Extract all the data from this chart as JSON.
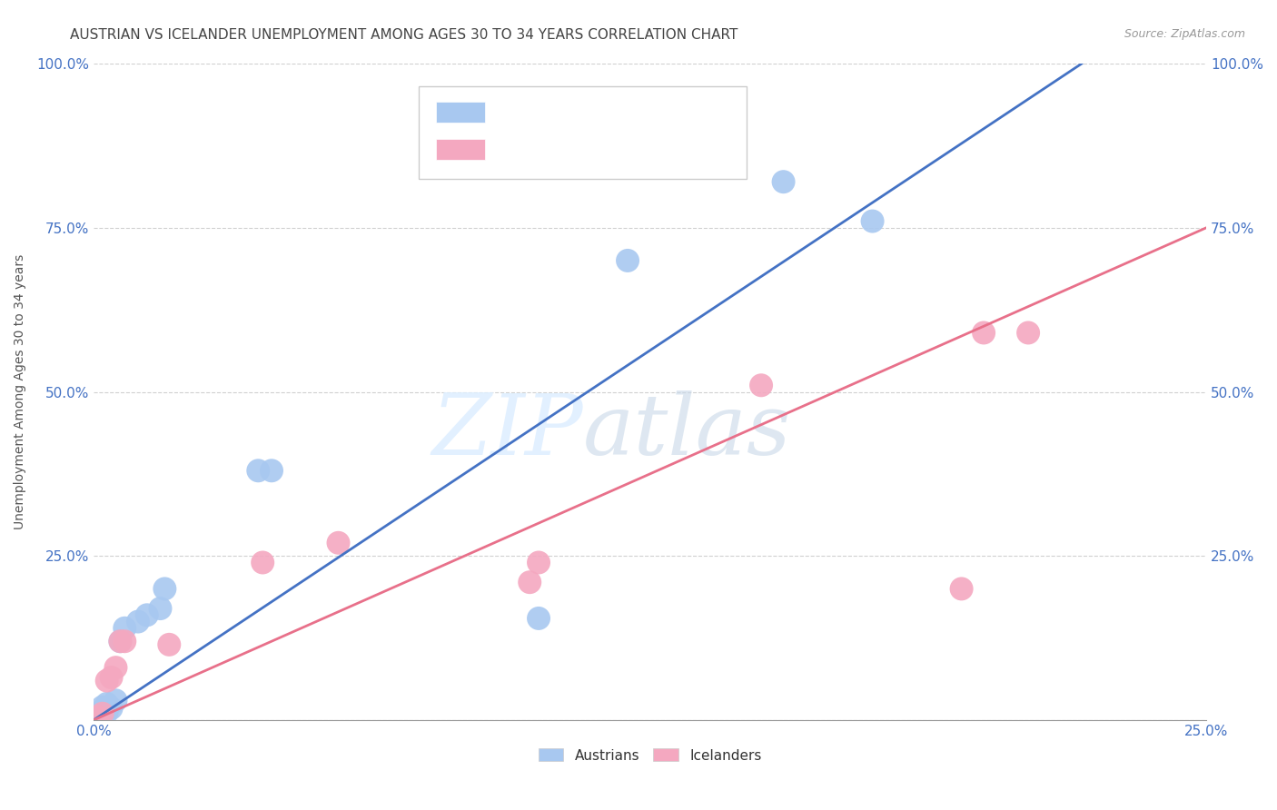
{
  "title": "AUSTRIAN VS ICELANDER UNEMPLOYMENT AMONG AGES 30 TO 34 YEARS CORRELATION CHART",
  "source": "Source: ZipAtlas.com",
  "ylabel_label": "Unemployment Among Ages 30 to 34 years",
  "xlim": [
    0.0,
    0.25
  ],
  "ylim": [
    0.0,
    1.0
  ],
  "xticks": [
    0.0,
    0.05,
    0.1,
    0.15,
    0.2,
    0.25
  ],
  "yticks": [
    0.0,
    0.25,
    0.5,
    0.75,
    1.0
  ],
  "xtick_labels": [
    "0.0%",
    "",
    "",
    "",
    "",
    "25.0%"
  ],
  "ytick_labels": [
    "",
    "25.0%",
    "50.0%",
    "75.0%",
    "100.0%"
  ],
  "austrians_x": [
    0.001,
    0.001,
    0.002,
    0.002,
    0.003,
    0.003,
    0.004,
    0.005,
    0.006,
    0.007,
    0.01,
    0.012,
    0.015,
    0.016,
    0.037,
    0.04,
    0.1,
    0.12,
    0.155,
    0.175
  ],
  "austrians_y": [
    0.005,
    0.01,
    0.015,
    0.02,
    0.012,
    0.025,
    0.018,
    0.03,
    0.12,
    0.14,
    0.15,
    0.16,
    0.17,
    0.2,
    0.38,
    0.38,
    0.155,
    0.7,
    0.82,
    0.76
  ],
  "icelanders_x": [
    0.001,
    0.002,
    0.003,
    0.004,
    0.005,
    0.006,
    0.007,
    0.017,
    0.038,
    0.055,
    0.098,
    0.1,
    0.15,
    0.195,
    0.2,
    0.21
  ],
  "icelanders_y": [
    0.005,
    0.01,
    0.06,
    0.065,
    0.08,
    0.12,
    0.12,
    0.115,
    0.24,
    0.27,
    0.21,
    0.24,
    0.51,
    0.2,
    0.59,
    0.59
  ],
  "austrians_color": "#a8c8f0",
  "icelanders_color": "#f4a8c0",
  "austrians_line_color": "#4472c4",
  "icelanders_line_color": "#e8708a",
  "watermark_zip": "ZIP",
  "watermark_atlas": "atlas",
  "background_color": "#ffffff",
  "grid_color": "#d0d0d0",
  "tick_color": "#4472c4",
  "title_fontsize": 11,
  "axis_label_fontsize": 10,
  "tick_fontsize": 11,
  "blue_line_x": [
    0.0,
    0.222
  ],
  "blue_line_y": [
    0.0,
    1.0
  ],
  "pink_line_x": [
    0.0,
    0.25
  ],
  "pink_line_y": [
    0.0,
    0.75
  ]
}
